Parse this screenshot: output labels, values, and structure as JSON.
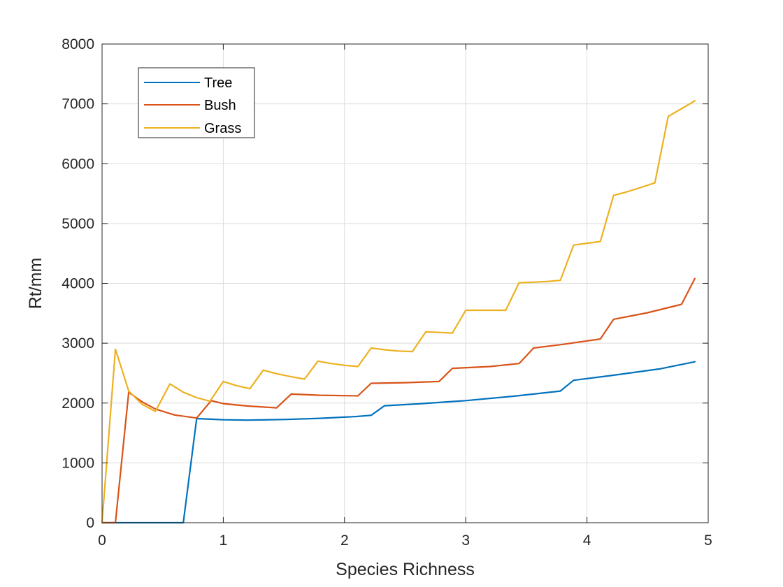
{
  "chart_data": {
    "type": "line",
    "title": "",
    "xlabel": "Species Richness",
    "ylabel": "Rt/mm",
    "xlim": [
      0,
      5
    ],
    "ylim": [
      0,
      8000
    ],
    "xticks": [
      0,
      1,
      2,
      3,
      4,
      5
    ],
    "yticks": [
      0,
      1000,
      2000,
      3000,
      4000,
      5000,
      6000,
      7000,
      8000
    ],
    "xtick_labels": [
      "0",
      "1",
      "2",
      "3",
      "4",
      "5"
    ],
    "ytick_labels": [
      "0",
      "1000",
      "2000",
      "3000",
      "4000",
      "5000",
      "6000",
      "7000",
      "8000"
    ],
    "grid": true,
    "legend_position": "top-left",
    "series": [
      {
        "name": "Tree",
        "color": "#0072BD",
        "x": [
          0,
          0.67,
          0.78,
          0.9,
          1.0,
          1.2,
          1.5,
          1.8,
          2.1,
          2.22,
          2.33,
          2.6,
          3.0,
          3.4,
          3.78,
          3.89,
          4.2,
          4.6,
          4.89
        ],
        "y": [
          0,
          0,
          1740,
          1730,
          1720,
          1715,
          1725,
          1745,
          1775,
          1795,
          1955,
          1985,
          2040,
          2115,
          2200,
          2380,
          2460,
          2570,
          2690
        ]
      },
      {
        "name": "Bush",
        "color": "#D95319",
        "x": [
          0,
          0.11,
          0.22,
          0.33,
          0.44,
          0.6,
          0.78,
          0.9,
          1.0,
          1.2,
          1.44,
          1.56,
          1.8,
          2.11,
          2.22,
          2.5,
          2.78,
          2.89,
          3.2,
          3.44,
          3.56,
          3.8,
          4.11,
          4.22,
          4.5,
          4.78,
          4.89
        ],
        "y": [
          0,
          0,
          2180,
          2020,
          1900,
          1800,
          1750,
          2040,
          1990,
          1950,
          1920,
          2150,
          2130,
          2120,
          2330,
          2340,
          2360,
          2580,
          2610,
          2660,
          2920,
          2980,
          3070,
          3400,
          3510,
          3650,
          4080
        ]
      },
      {
        "name": "Grass",
        "color": "#EDB120",
        "x": [
          0,
          0.11,
          0.22,
          0.33,
          0.44,
          0.56,
          0.67,
          0.78,
          0.89,
          1.0,
          1.11,
          1.22,
          1.33,
          1.44,
          1.56,
          1.67,
          1.78,
          1.89,
          2.0,
          2.11,
          2.22,
          2.33,
          2.44,
          2.56,
          2.67,
          2.78,
          2.89,
          3.0,
          3.11,
          3.22,
          3.33,
          3.44,
          3.56,
          3.67,
          3.78,
          3.89,
          4.0,
          4.11,
          4.22,
          4.33,
          4.44,
          4.56,
          4.67,
          4.78,
          4.89
        ],
        "y": [
          0,
          2900,
          2200,
          1980,
          1860,
          2320,
          2180,
          2090,
          2030,
          2360,
          2290,
          2240,
          2550,
          2490,
          2440,
          2400,
          2700,
          2660,
          2630,
          2610,
          2920,
          2890,
          2870,
          2860,
          3190,
          3180,
          3170,
          3550,
          3550,
          3550,
          3550,
          4010,
          4020,
          4030,
          4050,
          4640,
          4670,
          4700,
          5470,
          5530,
          5600,
          5680,
          6790,
          6920,
          7050
        ]
      }
    ]
  }
}
